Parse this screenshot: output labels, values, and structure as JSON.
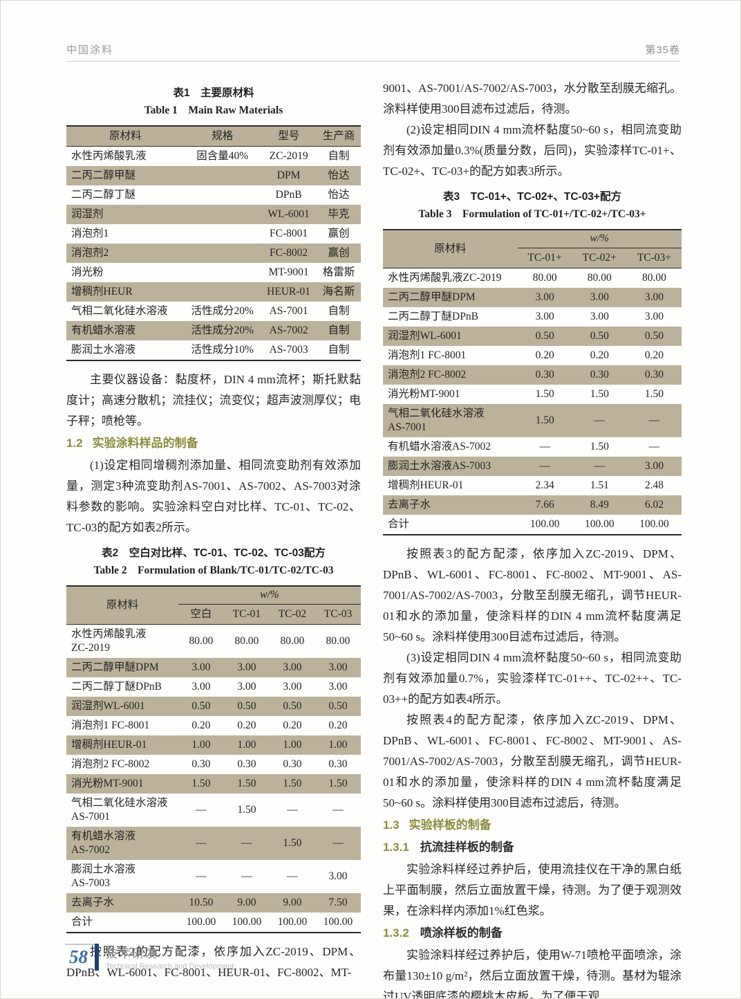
{
  "header": {
    "journal": "中国涂料",
    "volume": "第35卷"
  },
  "left": {
    "table1": {
      "caption_zh": "表1　主要原材料",
      "caption_en": "Table 1　Main Raw Materials",
      "columns": [
        "原材料",
        "规格",
        "型号",
        "生产商"
      ],
      "rows": [
        [
          "水性丙烯酸乳液",
          "固含量40%",
          "ZC-2019",
          "自制"
        ],
        [
          "二丙二醇甲醚",
          "",
          "DPM",
          "怡达"
        ],
        [
          "二丙二醇丁醚",
          "",
          "DPnB",
          "怡达"
        ],
        [
          "润湿剂",
          "",
          "WL-6001",
          "毕克"
        ],
        [
          "消泡剂1",
          "",
          "FC-8001",
          "赢创"
        ],
        [
          "消泡剂2",
          "",
          "FC-8002",
          "赢创"
        ],
        [
          "消光粉",
          "",
          "MT-9001",
          "格雷斯"
        ],
        [
          "增稠剂HEUR",
          "",
          "HEUR-01",
          "海名斯"
        ],
        [
          "气相二氧化硅水溶液",
          "活性成分20%",
          "AS-7001",
          "自制"
        ],
        [
          "有机蜡水溶液",
          "活性成分20%",
          "AS-7002",
          "自制"
        ],
        [
          "膨润土水溶液",
          "活性成分10%",
          "AS-7003",
          "自制"
        ]
      ]
    },
    "para_instruments": "主要仪器设备：黏度杯，DIN 4 mm流杯；斯托默黏度计；高速分散机；流挂仪；流变仪；超声波测厚仪；电子秤；喷枪等。",
    "sec12": {
      "num": "1.2",
      "title": "实验涂料样品的制备"
    },
    "para_1": "(1)设定相同增稠剂添加量、相同流变助剂有效添加量，测定3种流变助剂AS-7001、AS-7002、AS-7003对涂料参数的影响。实验涂料空白对比样、TC-01、TC-02、TC-03的配方如表2所示。",
    "table2": {
      "caption_zh": "表2　空白对比样、TC-01、TC-02、TC-03配方",
      "caption_en": "Table 2　Formulation of Blank/TC-01/TC-02/TC-03",
      "stub_header": "原材料",
      "group_header": "w/%",
      "col_headers": [
        "空白",
        "TC-01",
        "TC-02",
        "TC-03"
      ],
      "rows": [
        [
          "水性丙烯酸乳液\nZC-2019",
          "80.00",
          "80.00",
          "80.00",
          "80.00"
        ],
        [
          "二丙二醇甲醚DPM",
          "3.00",
          "3.00",
          "3.00",
          "3.00"
        ],
        [
          "二丙二醇丁醚DPnB",
          "3.00",
          "3.00",
          "3.00",
          "3.00"
        ],
        [
          "润湿剂WL-6001",
          "0.50",
          "0.50",
          "0.50",
          "0.50"
        ],
        [
          "消泡剂1 FC-8001",
          "0.20",
          "0.20",
          "0.20",
          "0.20"
        ],
        [
          "增稠剂HEUR-01",
          "1.00",
          "1.00",
          "1.00",
          "1.00"
        ],
        [
          "消泡剂2 FC-8002",
          "0.30",
          "0.30",
          "0.30",
          "0.30"
        ],
        [
          "消光粉MT-9001",
          "1.50",
          "1.50",
          "1.50",
          "1.50"
        ],
        [
          "气相二氧化硅水溶液\nAS-7001",
          "—",
          "1.50",
          "—",
          "—"
        ],
        [
          "有机蜡水溶液\nAS-7002",
          "—",
          "—",
          "1.50",
          "—"
        ],
        [
          "膨润土水溶液\nAS-7003",
          "—",
          "—",
          "—",
          "3.00"
        ],
        [
          "去离子水",
          "10.50",
          "9.00",
          "9.00",
          "7.50"
        ],
        [
          "合计",
          "100.00",
          "100.00",
          "100.00",
          "100.00"
        ]
      ]
    },
    "para_2": "按照表2的配方配漆，依序加入ZC-2019、DPM、DPnB、WL-6001、FC-8001、HEUR-01、FC-8002、MT-"
  },
  "right": {
    "para_1": "9001、AS-7001/AS-7002/AS-7003，水分散至刮膜无缩孔。涂料样使用300目滤布过滤后，待测。",
    "para_2": "(2)设定相同DIN 4 mm流杯黏度50~60 s，相同流变助剂有效添加量0.3%(质量分数，后同)，实验漆样TC-01+、TC-02+、TC-03+的配方如表3所示。",
    "table3": {
      "caption_zh": "表3　TC-01+、TC-02+、TC-03+配方",
      "caption_en": "Table 3　Formulation of TC-01+/TC-02+/TC-03+",
      "stub_header": "原材料",
      "group_header": "w/%",
      "col_headers": [
        "TC-01+",
        "TC-02+",
        "TC-03+"
      ],
      "rows": [
        [
          "水性丙烯酸乳液ZC-2019",
          "80.00",
          "80.00",
          "80.00"
        ],
        [
          "二丙二醇甲醚DPM",
          "3.00",
          "3.00",
          "3.00"
        ],
        [
          "二丙二醇丁醚DPnB",
          "3.00",
          "3.00",
          "3.00"
        ],
        [
          "润湿剂WL-6001",
          "0.50",
          "0.50",
          "0.50"
        ],
        [
          "消泡剂1 FC-8001",
          "0.20",
          "0.20",
          "0.20"
        ],
        [
          "消泡剂2 FC-8002",
          "0.30",
          "0.30",
          "0.30"
        ],
        [
          "消光粉MT-9001",
          "1.50",
          "1.50",
          "1.50"
        ],
        [
          "气相二氧化硅水溶液\nAS-7001",
          "1.50",
          "—",
          "—"
        ],
        [
          "有机蜡水溶液AS-7002",
          "—",
          "1.50",
          "—"
        ],
        [
          "膨润土水溶液AS-7003",
          "—",
          "—",
          "3.00"
        ],
        [
          "增稠剂HEUR-01",
          "2.34",
          "1.51",
          "2.48"
        ],
        [
          "去离子水",
          "7.66",
          "8.49",
          "6.02"
        ],
        [
          "合计",
          "100.00",
          "100.00",
          "100.00"
        ]
      ]
    },
    "para_3": "按照表3的配方配漆，依序加入ZC-2019、DPM、DPnB、WL-6001、FC-8001、FC-8002、MT-9001、AS-7001/AS-7002/AS-7003，分散至刮膜无缩孔，调节HEUR-01和水的添加量，使涂料样的DIN 4 mm流杯黏度满足50~60 s。涂料样使用300目滤布过滤后，待测。",
    "para_4": "(3)设定相同DIN 4 mm流杯黏度50~60 s，相同流变助剂有效添加量0.7%，实验漆样TC-01++、TC-02++、TC-03++的配方如表4所示。",
    "para_5": "按照表4的配方配漆，依序加入ZC-2019、DPM、DPnB、WL-6001、FC-8001、FC-8002、MT-9001、AS-7001/AS-7002/AS-7003，分散至刮膜无缩孔，调节HEUR-01和水的添加量，使涂料样的DIN 4 mm流杯黏度满足50~60 s。涂料样使用300目滤布过滤后，待测。",
    "sec13": {
      "num": "1.3",
      "title": "实验样板的制备"
    },
    "sec131": {
      "num": "1.3.1",
      "title": "抗流挂样板的制备"
    },
    "para_6": "实验涂料样经过养护后，使用流挂仪在干净的黑白纸上平面制膜，然后立面放置干燥，待测。为了便于观测效果，在涂料样内添加1%红色浆。",
    "sec132": {
      "num": "1.3.2",
      "title": "喷涂样板的制备"
    },
    "para_7": "实验涂料样经过养护后，使用W-71喷枪平面喷涂，涂布量130±10 g/m²，然后立面放置干燥，待测。基材为辊涂过UV透明底漆的樱桃木皮板。为了便于观"
  },
  "footer": {
    "page_number": "58",
    "section_zh": "技术研发",
    "section_en": "Technical Research and Development"
  }
}
